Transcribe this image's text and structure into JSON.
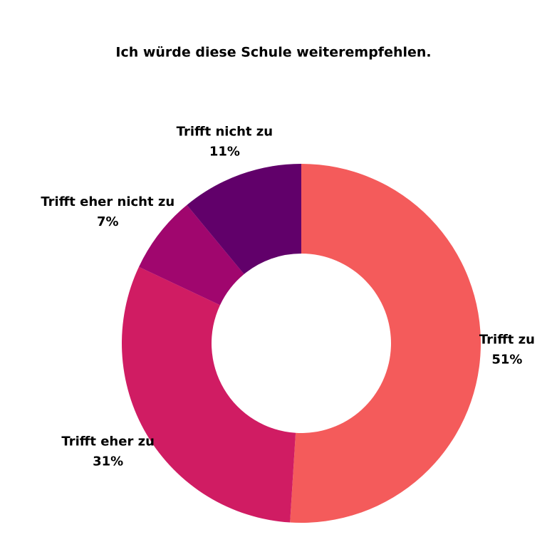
{
  "chart_data": {
    "type": "donut",
    "title": "Ich würde diese Schule weiterempfehlen.",
    "categories": [
      "Trifft zu",
      "Trifft eher zu",
      "Trifft eher nicht zu",
      "Trifft nicht zu"
    ],
    "values": [
      51,
      31,
      7,
      11
    ],
    "value_labels": [
      "51%",
      "31%",
      "7%",
      "11%"
    ],
    "colors": [
      "#f45b5b",
      "#d01c63",
      "#a0066e",
      "#61006a"
    ]
  }
}
